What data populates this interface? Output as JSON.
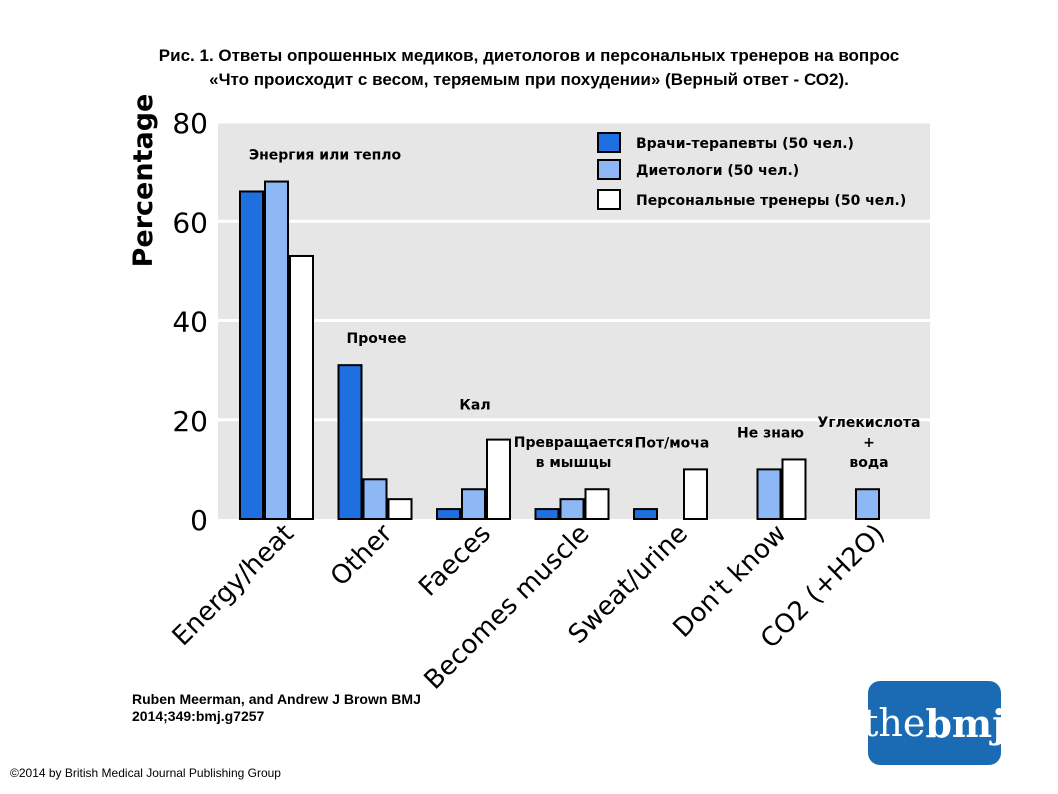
{
  "title_lines": [
    "Рис. 1. Ответы опрошенных медиков, диетологов и персональных тренеров на вопрос",
    "«Что происходит с весом, теряемым при похудении» (Верный ответ - СО2)."
  ],
  "chart_data": {
    "type": "bar",
    "ylabel": "Percentage",
    "ylim": [
      0,
      80
    ],
    "yticks": [
      0,
      20,
      40,
      60,
      80
    ],
    "grid": true,
    "legend_position": "top-right",
    "categories": [
      "Energy/heat",
      "Other",
      "Faeces",
      "Becomes muscle",
      "Sweat/urine",
      "Don't know",
      "CO2 (+H2O)"
    ],
    "category_labels_ru": [
      "Энергия или тепло",
      "Прочее",
      "Кал",
      "Превращается\nв мышцы",
      "Пот/моча",
      "Не знаю",
      "Углекислота\n+\nвода"
    ],
    "series": [
      {
        "name": "Врачи-терапевты (50 чел.)",
        "color": "#1e6fe0",
        "values": [
          66,
          31,
          2,
          2,
          2,
          null,
          null
        ]
      },
      {
        "name": "Диетологи (50 чел.)",
        "color": "#8db8f5",
        "values": [
          68,
          8,
          6,
          4,
          null,
          10,
          6
        ]
      },
      {
        "name": "Персональные тренеры (50 чел.)",
        "color": "#ffffff",
        "values": [
          53,
          4,
          16,
          6,
          10,
          12,
          null
        ]
      }
    ]
  },
  "citation_lines": [
    "Ruben Meerman, and Andrew J Brown BMJ",
    "2014;349:bmj.g7257"
  ],
  "copyright": "©2014 by British Medical Journal Publishing Group",
  "logo": {
    "the": "the",
    "bmj": "bmj",
    "color": "#1a6bb3"
  }
}
